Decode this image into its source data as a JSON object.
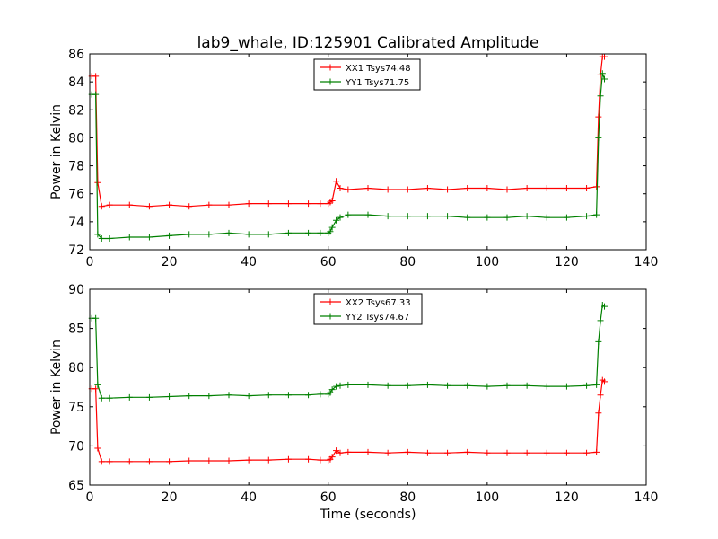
{
  "figure": {
    "title": "lab9_whale, ID:125901 Calibrated Amplitude"
  },
  "colors": {
    "XX": "#ff0000",
    "YY": "#008000",
    "axes": "#000000",
    "background": "#ffffff"
  },
  "chart_data": [
    {
      "type": "line",
      "title": "lab9_whale, ID:125901 Calibrated Amplitude",
      "xlabel": "",
      "ylabel": "Power in Kelvin",
      "xlim": [
        0,
        140
      ],
      "ylim": [
        72,
        86
      ],
      "xticks": [
        0,
        20,
        40,
        60,
        80,
        100,
        120,
        140
      ],
      "yticks": [
        72,
        74,
        76,
        78,
        80,
        82,
        84,
        86
      ],
      "grid": false,
      "legend_position": "top-center",
      "marker": "plus",
      "series": [
        {
          "name": "XX1 Tsys74.48",
          "color": "#ff0000",
          "x": [
            0.5,
            1.5,
            2,
            3,
            5,
            10,
            15,
            20,
            25,
            30,
            35,
            40,
            45,
            50,
            55,
            58,
            60,
            60.5,
            61,
            62,
            63,
            65,
            70,
            75,
            80,
            85,
            90,
            95,
            100,
            105,
            110,
            115,
            120,
            125,
            127.5,
            128,
            128.5,
            129,
            129.5
          ],
          "y": [
            84.4,
            84.4,
            76.8,
            75.1,
            75.2,
            75.2,
            75.1,
            75.2,
            75.1,
            75.2,
            75.2,
            75.3,
            75.3,
            75.3,
            75.3,
            75.3,
            75.3,
            75.4,
            75.5,
            76.9,
            76.4,
            76.3,
            76.4,
            76.3,
            76.3,
            76.4,
            76.3,
            76.4,
            76.4,
            76.3,
            76.4,
            76.4,
            76.4,
            76.4,
            76.5,
            81.5,
            84.5,
            85.8,
            85.8
          ]
        },
        {
          "name": "YY1 Tsys71.75",
          "color": "#008000",
          "x": [
            0.5,
            1.5,
            2,
            3,
            5,
            10,
            15,
            20,
            25,
            30,
            35,
            40,
            45,
            50,
            55,
            58,
            60,
            60.5,
            61,
            62,
            63,
            65,
            70,
            75,
            80,
            85,
            90,
            95,
            100,
            105,
            110,
            115,
            120,
            125,
            127.5,
            128,
            128.5,
            129,
            129.5
          ],
          "y": [
            83.1,
            83.1,
            73.1,
            72.8,
            72.8,
            72.9,
            72.9,
            73.0,
            73.1,
            73.1,
            73.2,
            73.1,
            73.1,
            73.2,
            73.2,
            73.2,
            73.2,
            73.3,
            73.6,
            74.1,
            74.3,
            74.5,
            74.5,
            74.4,
            74.4,
            74.4,
            74.4,
            74.3,
            74.3,
            74.3,
            74.4,
            74.3,
            74.3,
            74.4,
            74.5,
            80.0,
            83.0,
            84.6,
            84.2
          ]
        }
      ]
    },
    {
      "type": "line",
      "title": "",
      "xlabel": "Time (seconds)",
      "ylabel": "Power in Kelvin",
      "xlim": [
        0,
        140
      ],
      "ylim": [
        65,
        90
      ],
      "xticks": [
        0,
        20,
        40,
        60,
        80,
        100,
        120,
        140
      ],
      "yticks": [
        65,
        70,
        75,
        80,
        85,
        90
      ],
      "grid": false,
      "legend_position": "top-center",
      "marker": "plus",
      "series": [
        {
          "name": "XX2 Tsys67.33",
          "color": "#ff0000",
          "x": [
            0.5,
            1.5,
            2,
            3,
            5,
            10,
            15,
            20,
            25,
            30,
            35,
            40,
            45,
            50,
            55,
            58,
            60,
            60.5,
            61,
            62,
            63,
            65,
            70,
            75,
            80,
            85,
            90,
            95,
            100,
            105,
            110,
            115,
            120,
            125,
            127.5,
            128,
            128.5,
            129,
            129.5
          ],
          "y": [
            77.3,
            77.3,
            69.7,
            68.0,
            68.0,
            68.0,
            68.0,
            68.0,
            68.1,
            68.1,
            68.1,
            68.2,
            68.2,
            68.3,
            68.3,
            68.2,
            68.2,
            68.3,
            68.6,
            69.4,
            69.1,
            69.2,
            69.2,
            69.1,
            69.2,
            69.1,
            69.1,
            69.2,
            69.1,
            69.1,
            69.1,
            69.1,
            69.1,
            69.1,
            69.2,
            74.2,
            76.5,
            78.4,
            78.2
          ]
        },
        {
          "name": "YY2 Tsys74.67",
          "color": "#008000",
          "x": [
            0.5,
            1.5,
            2,
            3,
            5,
            10,
            15,
            20,
            25,
            30,
            35,
            40,
            45,
            50,
            55,
            58,
            60,
            60.5,
            61,
            62,
            63,
            65,
            70,
            75,
            80,
            85,
            90,
            95,
            100,
            105,
            110,
            115,
            120,
            125,
            127.5,
            128,
            128.5,
            129,
            129.5
          ],
          "y": [
            86.3,
            86.3,
            77.8,
            76.1,
            76.1,
            76.2,
            76.2,
            76.3,
            76.4,
            76.4,
            76.5,
            76.4,
            76.5,
            76.5,
            76.5,
            76.6,
            76.6,
            76.8,
            77.2,
            77.6,
            77.7,
            77.8,
            77.8,
            77.7,
            77.7,
            77.8,
            77.7,
            77.7,
            77.6,
            77.7,
            77.7,
            77.6,
            77.6,
            77.7,
            77.8,
            83.3,
            86.0,
            88.0,
            87.8
          ]
        }
      ]
    }
  ]
}
